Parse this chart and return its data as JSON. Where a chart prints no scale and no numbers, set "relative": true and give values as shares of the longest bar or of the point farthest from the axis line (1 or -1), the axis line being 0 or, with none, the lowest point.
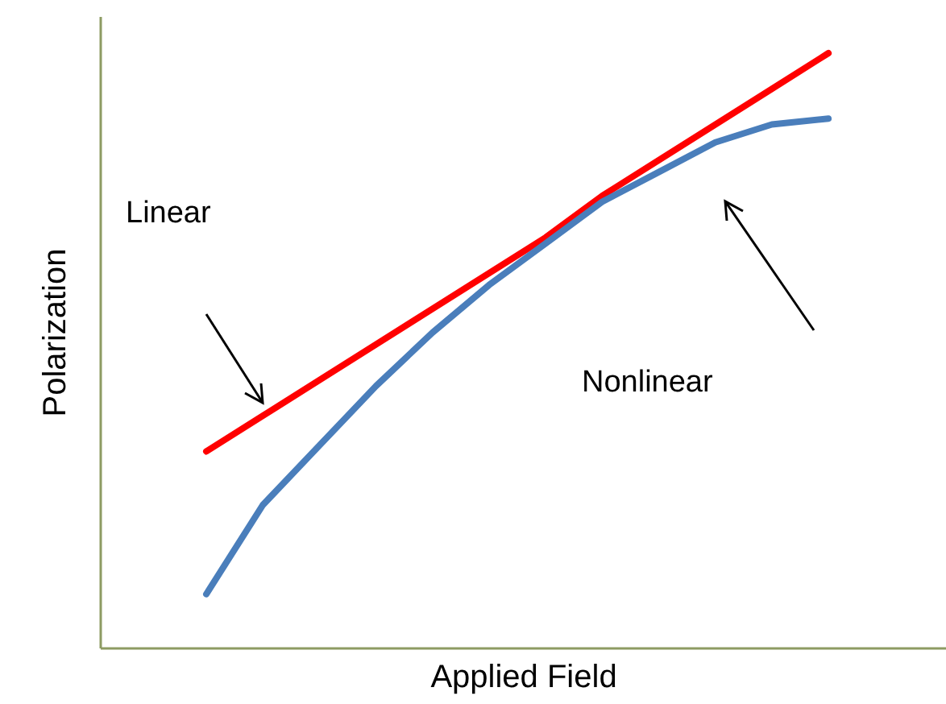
{
  "chart_data": {
    "type": "line",
    "relative": true,
    "xlabel": "Applied Field",
    "ylabel": "Polarization",
    "categories": [
      null,
      null,
      null,
      null,
      null,
      null,
      null,
      null,
      null,
      null,
      null,
      null
    ],
    "series": [
      {
        "color": "#ff0000",
        "values": [
          0.33,
          0.39,
          0.45,
          0.51,
          0.57,
          0.63,
          0.69,
          0.76,
          0.82,
          0.88,
          0.94,
          1.0
        ]
      },
      {
        "color": "#4a7ebb",
        "values": [
          0.09,
          0.24,
          0.34,
          0.44,
          0.53,
          0.61,
          0.68,
          0.75,
          0.8,
          0.85,
          0.88,
          0.89
        ]
      }
    ],
    "annotations": [
      "Linear",
      "Nonlinear"
    ],
    "grid": false,
    "marker": "none",
    "line_style": "solid"
  }
}
